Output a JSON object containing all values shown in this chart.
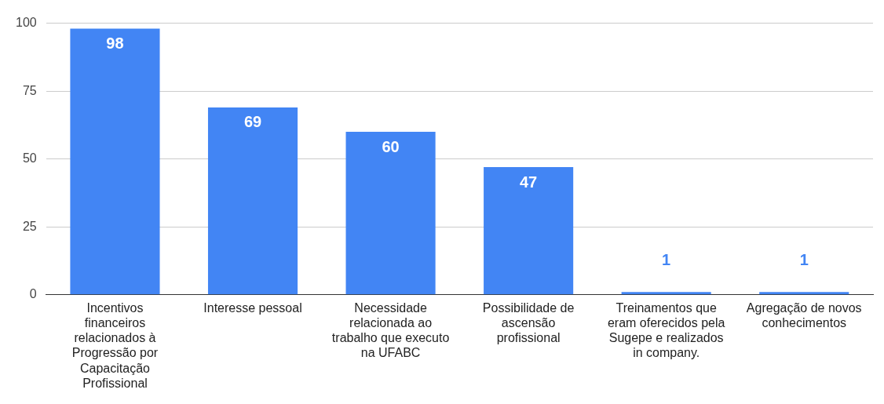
{
  "chart_data": {
    "type": "bar",
    "categories": [
      "Incentivos financeiros relacionados à Progressão por Capacitação Profissional",
      "Interesse pessoal",
      "Necessidade relacionada ao trabalho que executo na UFABC",
      "Possibilidade de ascensão profissional",
      "Treinamentos que eram oferecidos pela Sugepe e realizados in company.",
      "Agregação de novos conhecimentos"
    ],
    "values": [
      98,
      69,
      60,
      47,
      1,
      1
    ],
    "color": "#4285f4",
    "ylim": [
      0,
      100
    ],
    "yticks": [
      0,
      25,
      50,
      75,
      100
    ],
    "grid": "y",
    "data_labels": true,
    "legend": false
  }
}
